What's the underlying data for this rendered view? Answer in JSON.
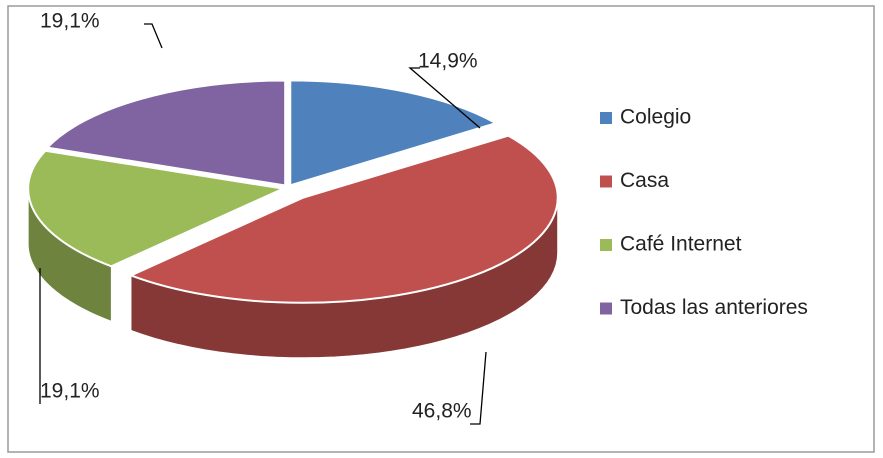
{
  "chart_data": {
    "type": "pie3d",
    "categories": [
      "Colegio",
      "Casa",
      "Café Internet",
      "Todas las anteriores"
    ],
    "values": [
      14.9,
      46.8,
      19.1,
      19.1
    ],
    "value_labels": [
      "14,9%",
      "46,8%",
      "19,1%",
      "19,1%"
    ],
    "colors": [
      "#4f81bd",
      "#c0504d",
      "#9bbb59",
      "#8064a2"
    ],
    "legend": "right"
  }
}
